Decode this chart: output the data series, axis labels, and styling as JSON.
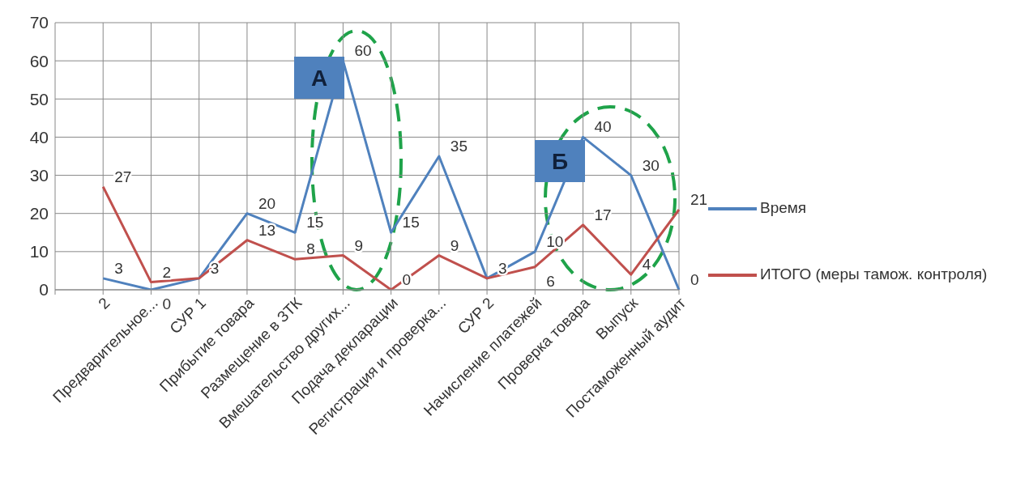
{
  "chart_data": {
    "type": "line",
    "categories": [
      null,
      "2",
      "Предварительное...",
      "СУР 1",
      "Прибытие товара",
      "Размещение в ЗТК",
      "Вмешательство других...",
      "Подача декларации",
      "Регистрация и проверка...",
      "СУР 2",
      "Начисление платежей",
      "Проверка товара",
      "Выпуск",
      "Постаможенный аудит"
    ],
    "series": [
      {
        "name": "Время",
        "color": "#4f81bd",
        "values": [
          null,
          3,
          0,
          3,
          20,
          15,
          60,
          15,
          35,
          3,
          10,
          40,
          30,
          0
        ],
        "value_labels": [
          null,
          "3",
          "0",
          "3",
          "20",
          "15",
          "60",
          "15",
          "35",
          "3",
          "10",
          "40",
          "30",
          "0"
        ]
      },
      {
        "name": "ИТОГО (меры тамож. контроля)",
        "color": "#c0504d",
        "values": [
          null,
          27,
          2,
          3,
          13,
          8,
          9,
          0,
          9,
          3,
          6,
          17,
          4,
          21
        ],
        "value_labels": [
          null,
          "27",
          "2",
          null,
          "13",
          "8",
          "9",
          "0",
          "9",
          null,
          "6",
          "17",
          "4",
          "21"
        ]
      }
    ],
    "ylim": [
      0,
      70
    ],
    "yticks": [
      0,
      10,
      20,
      30,
      40,
      50,
      60,
      70
    ],
    "grid": true,
    "legend": "right",
    "marker": "none",
    "line_style": "solid",
    "annotations": [
      "А",
      "Б"
    ]
  }
}
